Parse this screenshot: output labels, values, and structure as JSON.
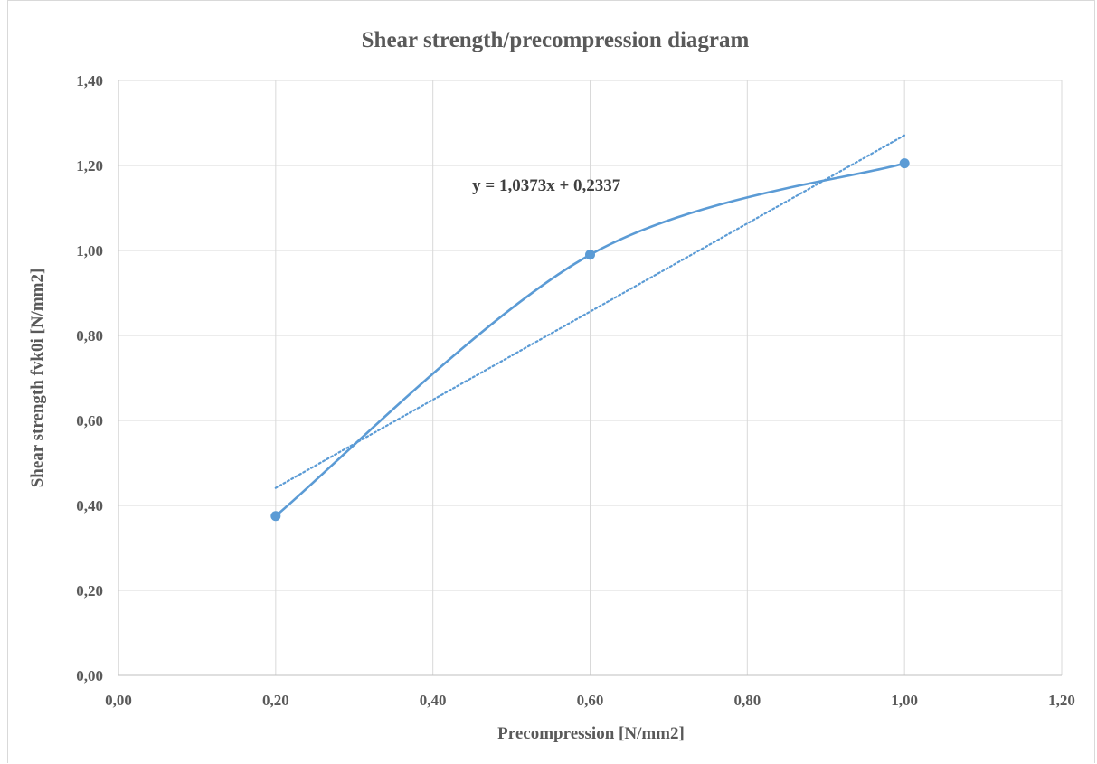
{
  "chart_data": {
    "type": "scatter",
    "title": "Shear strength/precompression  diagram",
    "xlabel": "Precompression [N/mm2]",
    "ylabel": "Shear strength fvk0i [N/mm2]",
    "xlim": [
      0,
      1.2
    ],
    "ylim": [
      0,
      1.4
    ],
    "x_ticks": [
      "0,00",
      "0,20",
      "0,40",
      "0,60",
      "0,80",
      "1,00",
      "1,20"
    ],
    "x_tick_values": [
      0,
      0.2,
      0.4,
      0.6,
      0.8,
      1.0,
      1.2
    ],
    "y_ticks": [
      "0,00",
      "0,20",
      "0,40",
      "0,60",
      "0,80",
      "1,00",
      "1,20",
      "1,40"
    ],
    "y_tick_values": [
      0,
      0.2,
      0.4,
      0.6,
      0.8,
      1.0,
      1.2,
      1.4
    ],
    "grid": true,
    "series": [
      {
        "x": [
          0.2,
          0.6,
          1.0
        ],
        "y": [
          0.375,
          0.99,
          1.205
        ],
        "line": "smooth",
        "markers": true,
        "color": "#5b9bd5"
      }
    ],
    "trendline": {
      "type": "linear",
      "slope": 1.0373,
      "intercept": 0.2337,
      "x_range": [
        0.2,
        1.0
      ],
      "style": "dotted",
      "color": "#5b9bd5",
      "equation_label": "y = 1,0373x + 0,2337"
    }
  }
}
